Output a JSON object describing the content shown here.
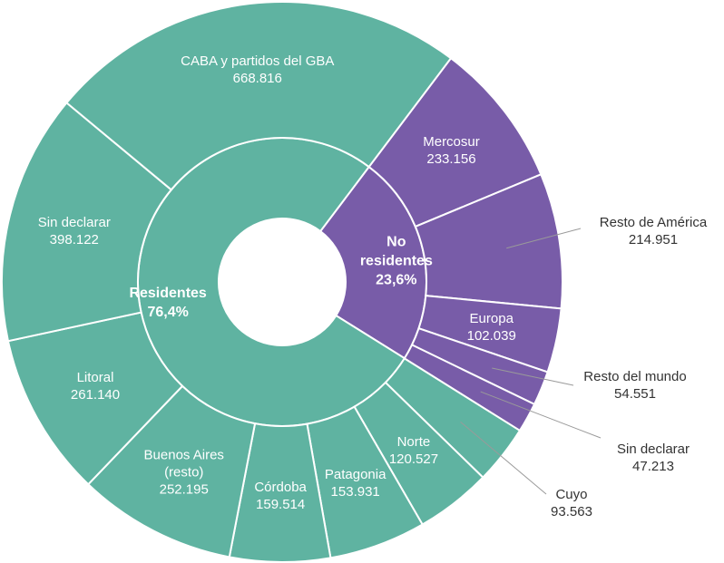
{
  "chart_data": {
    "type": "sunburst",
    "groups": [
      {
        "name": "No residentes",
        "share": 23.6,
        "share_label": "23,6%",
        "color": "#785ca8",
        "categories": [
          "Mercosur",
          "Resto de América",
          "Europa",
          "Resto del mundo",
          "Sin declarar"
        ],
        "values": [
          233156,
          214951,
          102039,
          54551,
          47213
        ],
        "value_labels": [
          "233.156",
          "214.951",
          "102.039",
          "54.551",
          "47.213"
        ]
      },
      {
        "name": "Residentes",
        "share": 76.4,
        "share_label": "76,4%",
        "color": "#5fb3a1",
        "categories": [
          "Cuyo",
          "Norte",
          "Patagonia",
          "Córdoba",
          "Buenos Aires (resto)",
          "Litoral",
          "Sin declarar",
          "CABA y partidos del GBA"
        ],
        "values": [
          93563,
          120527,
          153931,
          159514,
          252195,
          261140,
          398122,
          668816
        ],
        "value_labels": [
          "93.563",
          "120.527",
          "153.931",
          "159.514",
          "252.195",
          "261.140",
          "398.122",
          "668.816"
        ]
      }
    ]
  }
}
